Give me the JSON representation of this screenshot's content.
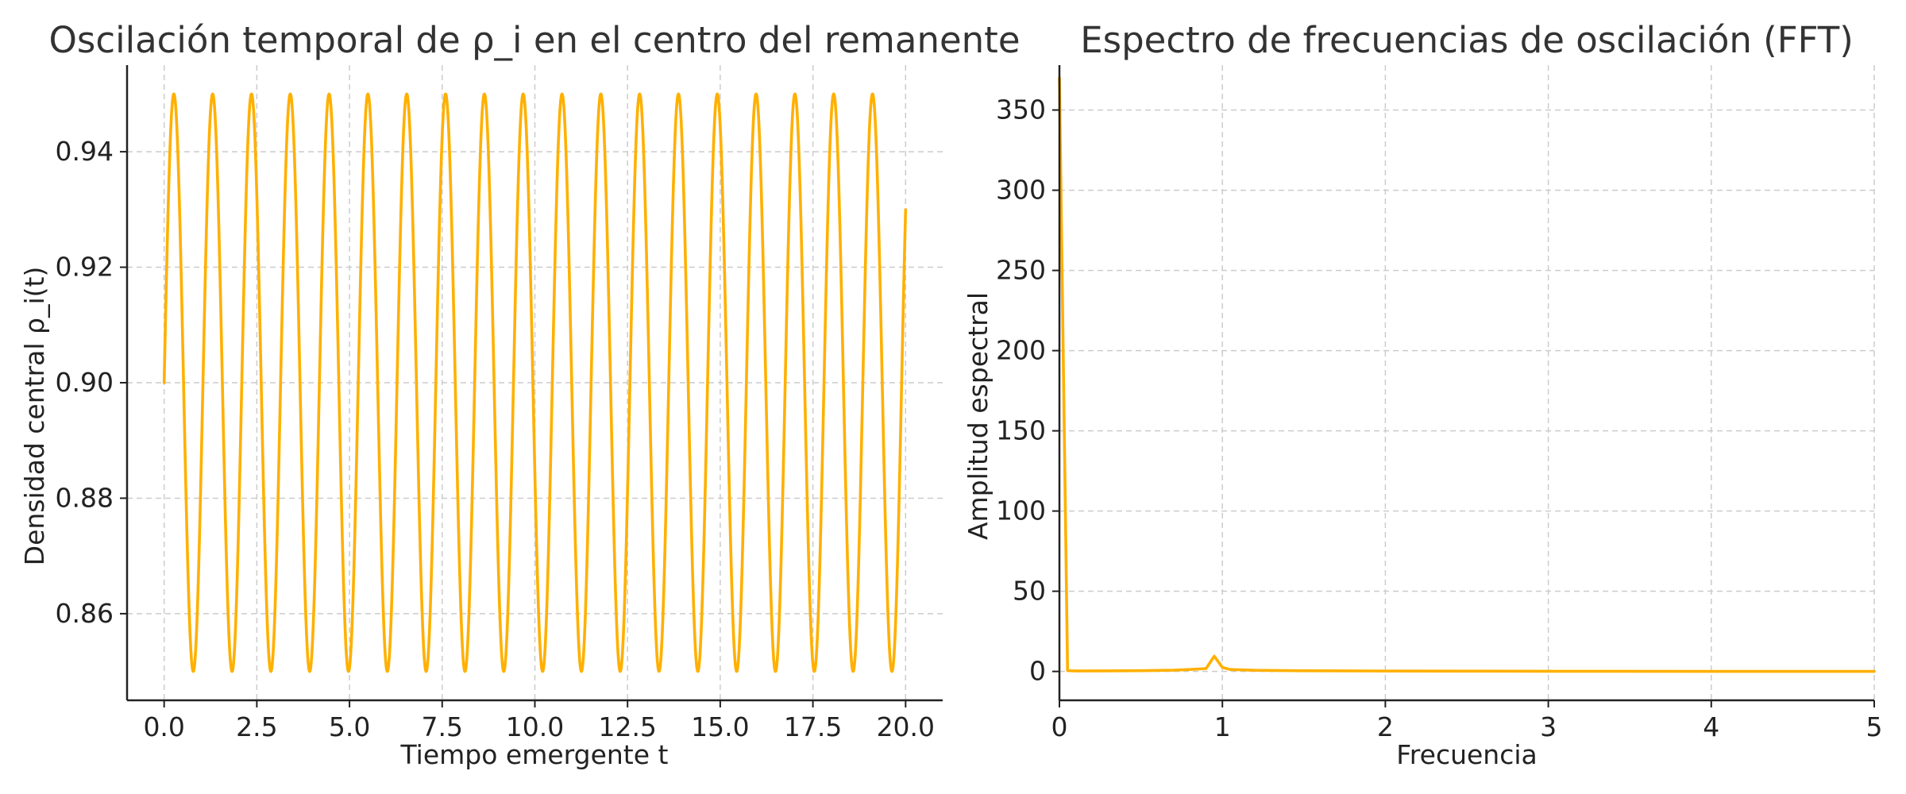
{
  "chart_data": [
    {
      "type": "line",
      "title": "Oscilación temporal de ρ_i en el centro del remanente",
      "xlabel": "Tiempo emergente t",
      "ylabel": "Densidad central ρ_i(t)",
      "xlim": [
        -1.0,
        21.0
      ],
      "ylim": [
        0.845,
        0.955
      ],
      "xticks": [
        0.0,
        2.5,
        5.0,
        7.5,
        10.0,
        12.5,
        15.0,
        17.5,
        20.0
      ],
      "xtick_labels": [
        "0.0",
        "2.5",
        "5.0",
        "7.5",
        "10.0",
        "12.5",
        "15.0",
        "17.5",
        "20.0"
      ],
      "yticks": [
        0.86,
        0.88,
        0.9,
        0.92,
        0.94
      ],
      "ytick_labels": [
        "0.86",
        "0.88",
        "0.90",
        "0.92",
        "0.94"
      ],
      "grid": true,
      "color": "#FFB000",
      "series": [
        {
          "function": "sine",
          "offset": 0.9,
          "amplitude": 0.05,
          "period": 1.047,
          "x_start": 0.0,
          "x_end": 20.0
        }
      ]
    },
    {
      "type": "line",
      "title": "Espectro de frecuencias de oscilación (FFT)",
      "xlabel": "Frecuencia",
      "ylabel": "Amplitud espectral",
      "xlim": [
        0,
        5
      ],
      "ylim": [
        -18,
        378
      ],
      "xticks": [
        0,
        1,
        2,
        3,
        4,
        5
      ],
      "xtick_labels": [
        "0",
        "1",
        "2",
        "3",
        "4",
        "5"
      ],
      "yticks": [
        0,
        50,
        100,
        150,
        200,
        250,
        300,
        350
      ],
      "ytick_labels": [
        "0",
        "50",
        "100",
        "150",
        "200",
        "250",
        "300",
        "350"
      ],
      "grid": true,
      "color": "#FFB000",
      "series": [
        {
          "x": [
            0,
            0.05,
            0.1,
            0.3,
            0.5,
            0.7,
            0.8,
            0.9,
            0.95,
            1.0,
            1.05,
            1.2,
            1.5,
            2.0,
            3.0,
            4.0,
            5.0
          ],
          "y": [
            370,
            0.5,
            0.3,
            0.35,
            0.45,
            0.8,
            1.2,
            1.8,
            9.5,
            2.5,
            1.2,
            0.7,
            0.4,
            0.25,
            0.12,
            0.06,
            0.03
          ]
        }
      ]
    }
  ]
}
